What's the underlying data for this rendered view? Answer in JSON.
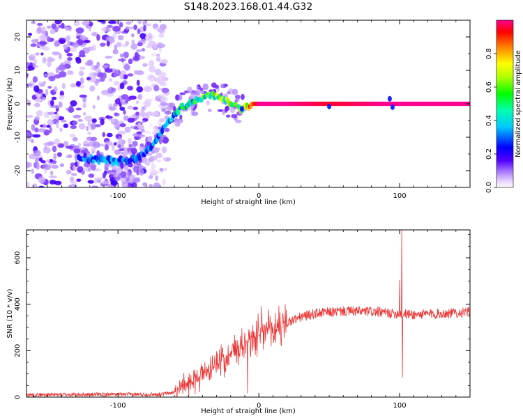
{
  "figure": {
    "title": "S148.2023.168.01.44.G32"
  },
  "chart_data": [
    {
      "type": "heatmap",
      "xlabel": "Height of straight line (km)",
      "ylabel": "Frequency (Hz)",
      "xlim": [
        -165,
        150
      ],
      "ylim": [
        -25,
        25
      ],
      "xticks": [
        -100,
        0,
        100
      ],
      "yticks": [
        -20,
        -10,
        0,
        10,
        20
      ],
      "grid": false,
      "colorbar": {
        "label": "Normalized spectral amplitude",
        "range": [
          0,
          1
        ],
        "ticks": [
          0.0,
          0.2,
          0.4,
          0.6,
          0.8
        ],
        "colormap": "rainbow (violet-blue-cyan-green-yellow-red-magenta)"
      },
      "ridge": {
        "x": [
          -128,
          -110,
          -95,
          -85,
          -75,
          -65,
          -58,
          -50,
          -40,
          -30,
          -20,
          -12,
          -5,
          0,
          20,
          50,
          90,
          100,
          150
        ],
        "frequency": [
          -16,
          -17,
          -17,
          -16,
          -12,
          -6,
          -2,
          0,
          2,
          2.5,
          0,
          -1.5,
          0,
          0,
          0,
          0,
          0,
          0,
          0
        ],
        "amplitude": [
          0.3,
          0.35,
          0.3,
          0.3,
          0.35,
          0.4,
          0.45,
          0.5,
          0.55,
          0.6,
          0.65,
          0.7,
          0.85,
          1.0,
          1.0,
          0.95,
          1.0,
          1.0,
          1.0
        ]
      },
      "noise_region": "scattered low-amplitude spectral noise between about -165 and -70 km across all frequencies"
    },
    {
      "type": "line",
      "xlabel": "Height of straight line (km)",
      "ylabel": "SNR (10 * v/v)",
      "xlim": [
        -165,
        150
      ],
      "ylim": [
        0,
        720
      ],
      "xticks": [
        -100,
        0,
        100
      ],
      "yticks": [
        0,
        200,
        400,
        600
      ],
      "grid": false,
      "series": [
        {
          "color": "#ee3333",
          "envelope": {
            "x": [
              -165,
              -70,
              -60,
              -50,
              -40,
              -30,
              -20,
              -10,
              0,
              10,
              20,
              30,
              40,
              60,
              80,
              95,
              100,
              110,
              130,
              150
            ],
            "y": [
              10,
              12,
              20,
              60,
              100,
              140,
              190,
              240,
              270,
              290,
              320,
              345,
              360,
              370,
              368,
              360,
              360,
              355,
              360,
              365
            ]
          },
          "spikes": [
            {
              "x": 100,
              "y": 505
            },
            {
              "x": 101.5,
              "y": 720
            },
            {
              "x": 102,
              "y": 85
            },
            {
              "x": -8,
              "y": 15
            }
          ]
        }
      ]
    }
  ]
}
